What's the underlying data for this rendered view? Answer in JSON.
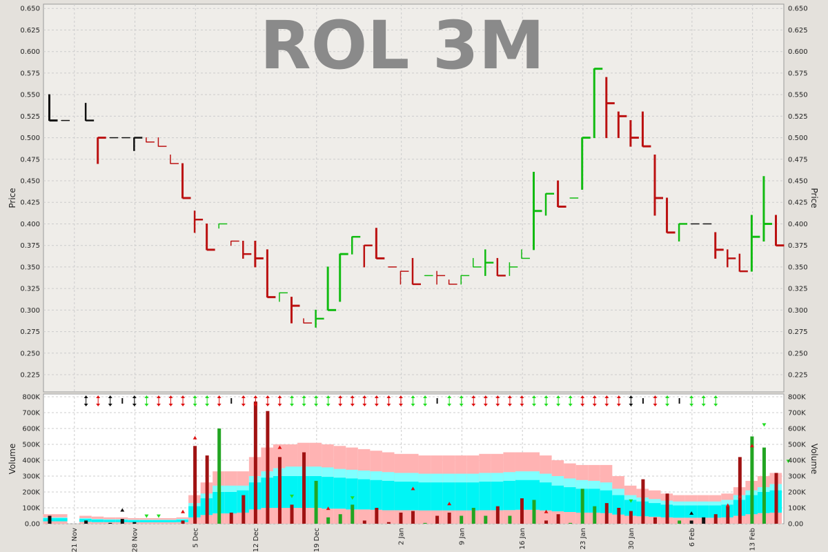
{
  "chart_data": [
    {
      "type": "ohlc",
      "title": "ROL 3M",
      "ylabel": "Price",
      "ylim": [
        0.205,
        0.655
      ],
      "yticks": [
        0.225,
        0.25,
        0.275,
        0.3,
        0.325,
        0.35,
        0.375,
        0.4,
        0.425,
        0.45,
        0.475,
        0.5,
        0.525,
        0.55,
        0.575,
        0.6,
        0.625,
        0.65
      ],
      "grid": true,
      "colors": {
        "up": "#11bb11",
        "down": "#bb1111",
        "neutral": "#111111",
        "background": "#efede9",
        "grid": "#cccccc",
        "title": "#8a8a8a"
      },
      "bars": [
        {
          "d": 0,
          "o": 0.55,
          "h": 0.55,
          "l": 0.52,
          "c": 0.52,
          "t": "n"
        },
        {
          "d": 1,
          "o": 0.52,
          "h": 0.52,
          "l": 0.52,
          "c": 0.52,
          "t": "n"
        },
        {
          "d": 3,
          "o": 0.54,
          "h": 0.54,
          "l": 0.52,
          "c": 0.52,
          "t": "n"
        },
        {
          "d": 4,
          "o": 0.5,
          "h": 0.5,
          "l": 0.47,
          "c": 0.5,
          "t": "d"
        },
        {
          "d": 5,
          "o": 0.5,
          "h": 0.5,
          "l": 0.5,
          "c": 0.5,
          "t": "n"
        },
        {
          "d": 6,
          "o": 0.5,
          "h": 0.5,
          "l": 0.5,
          "c": 0.5,
          "t": "n"
        },
        {
          "d": 7,
          "o": 0.5,
          "h": 0.5,
          "l": 0.485,
          "c": 0.5,
          "t": "n"
        },
        {
          "d": 8,
          "o": 0.5,
          "h": 0.5,
          "l": 0.495,
          "c": 0.495,
          "t": "d"
        },
        {
          "d": 9,
          "o": 0.5,
          "h": 0.5,
          "l": 0.49,
          "c": 0.49,
          "t": "d"
        },
        {
          "d": 10,
          "o": 0.48,
          "h": 0.48,
          "l": 0.47,
          "c": 0.47,
          "t": "d"
        },
        {
          "d": 11,
          "o": 0.47,
          "h": 0.47,
          "l": 0.43,
          "c": 0.43,
          "t": "d"
        },
        {
          "d": 12,
          "o": 0.415,
          "h": 0.415,
          "l": 0.39,
          "c": 0.405,
          "t": "d"
        },
        {
          "d": 13,
          "o": 0.4,
          "h": 0.4,
          "l": 0.37,
          "c": 0.37,
          "t": "d"
        },
        {
          "d": 14,
          "o": 0.395,
          "h": 0.4,
          "l": 0.395,
          "c": 0.4,
          "t": "u"
        },
        {
          "d": 15,
          "o": 0.38,
          "h": 0.38,
          "l": 0.375,
          "c": 0.38,
          "t": "d"
        },
        {
          "d": 16,
          "o": 0.38,
          "h": 0.38,
          "l": 0.36,
          "c": 0.365,
          "t": "d"
        },
        {
          "d": 17,
          "o": 0.38,
          "h": 0.38,
          "l": 0.35,
          "c": 0.36,
          "t": "d"
        },
        {
          "d": 18,
          "o": 0.37,
          "h": 0.37,
          "l": 0.315,
          "c": 0.315,
          "t": "d"
        },
        {
          "d": 19,
          "o": 0.32,
          "h": 0.32,
          "l": 0.31,
          "c": 0.32,
          "t": "u"
        },
        {
          "d": 20,
          "o": 0.315,
          "h": 0.315,
          "l": 0.285,
          "c": 0.305,
          "t": "d"
        },
        {
          "d": 21,
          "o": 0.29,
          "h": 0.29,
          "l": 0.285,
          "c": 0.285,
          "t": "d"
        },
        {
          "d": 22,
          "o": 0.29,
          "h": 0.3,
          "l": 0.28,
          "c": 0.29,
          "t": "u"
        },
        {
          "d": 23,
          "o": 0.3,
          "h": 0.35,
          "l": 0.3,
          "c": 0.3,
          "t": "u"
        },
        {
          "d": 24,
          "o": 0.31,
          "h": 0.365,
          "l": 0.31,
          "c": 0.365,
          "t": "u"
        },
        {
          "d": 25,
          "o": 0.365,
          "h": 0.385,
          "l": 0.365,
          "c": 0.385,
          "t": "u"
        },
        {
          "d": 26,
          "o": 0.375,
          "h": 0.375,
          "l": 0.35,
          "c": 0.375,
          "t": "d"
        },
        {
          "d": 27,
          "o": 0.395,
          "h": 0.395,
          "l": 0.36,
          "c": 0.36,
          "t": "d"
        },
        {
          "d": 28,
          "o": 0.35,
          "h": 0.35,
          "l": 0.35,
          "c": 0.35,
          "t": "d"
        },
        {
          "d": 29,
          "o": 0.345,
          "h": 0.345,
          "l": 0.33,
          "c": 0.345,
          "t": "d"
        },
        {
          "d": 30,
          "o": 0.36,
          "h": 0.36,
          "l": 0.33,
          "c": 0.33,
          "t": "d"
        },
        {
          "d": 31,
          "o": 0.34,
          "h": 0.34,
          "l": 0.34,
          "c": 0.34,
          "t": "u"
        },
        {
          "d": 32,
          "o": 0.345,
          "h": 0.345,
          "l": 0.33,
          "c": 0.34,
          "t": "d"
        },
        {
          "d": 33,
          "o": 0.335,
          "h": 0.335,
          "l": 0.33,
          "c": 0.33,
          "t": "d"
        },
        {
          "d": 34,
          "o": 0.33,
          "h": 0.34,
          "l": 0.33,
          "c": 0.34,
          "t": "u"
        },
        {
          "d": 35,
          "o": 0.35,
          "h": 0.36,
          "l": 0.35,
          "c": 0.35,
          "t": "u"
        },
        {
          "d": 36,
          "o": 0.35,
          "h": 0.37,
          "l": 0.34,
          "c": 0.355,
          "t": "u"
        },
        {
          "d": 37,
          "o": 0.36,
          "h": 0.36,
          "l": 0.34,
          "c": 0.34,
          "t": "d"
        },
        {
          "d": 38,
          "o": 0.35,
          "h": 0.355,
          "l": 0.34,
          "c": 0.35,
          "t": "u"
        },
        {
          "d": 39,
          "o": 0.36,
          "h": 0.37,
          "l": 0.36,
          "c": 0.36,
          "t": "u"
        },
        {
          "d": 40,
          "o": 0.37,
          "h": 0.46,
          "l": 0.37,
          "c": 0.415,
          "t": "u"
        },
        {
          "d": 41,
          "o": 0.41,
          "h": 0.435,
          "l": 0.41,
          "c": 0.435,
          "t": "u"
        },
        {
          "d": 42,
          "o": 0.42,
          "h": 0.45,
          "l": 0.42,
          "c": 0.42,
          "t": "d"
        },
        {
          "d": 43,
          "o": 0.43,
          "h": 0.43,
          "l": 0.43,
          "c": 0.43,
          "t": "u"
        },
        {
          "d": 44,
          "o": 0.44,
          "h": 0.5,
          "l": 0.44,
          "c": 0.5,
          "t": "u"
        },
        {
          "d": 45,
          "o": 0.5,
          "h": 0.58,
          "l": 0.5,
          "c": 0.58,
          "t": "u"
        },
        {
          "d": 46,
          "o": 0.57,
          "h": 0.57,
          "l": 0.5,
          "c": 0.54,
          "t": "d"
        },
        {
          "d": 47,
          "o": 0.53,
          "h": 0.53,
          "l": 0.5,
          "c": 0.525,
          "t": "d"
        },
        {
          "d": 48,
          "o": 0.52,
          "h": 0.52,
          "l": 0.49,
          "c": 0.5,
          "t": "d"
        },
        {
          "d": 49,
          "o": 0.53,
          "h": 0.53,
          "l": 0.49,
          "c": 0.49,
          "t": "d"
        },
        {
          "d": 50,
          "o": 0.48,
          "h": 0.48,
          "l": 0.41,
          "c": 0.43,
          "t": "d"
        },
        {
          "d": 51,
          "o": 0.43,
          "h": 0.43,
          "l": 0.39,
          "c": 0.39,
          "t": "d"
        },
        {
          "d": 52,
          "o": 0.38,
          "h": 0.4,
          "l": 0.38,
          "c": 0.4,
          "t": "u"
        },
        {
          "d": 53,
          "o": 0.4,
          "h": 0.4,
          "l": 0.4,
          "c": 0.4,
          "t": "n"
        },
        {
          "d": 54,
          "o": 0.4,
          "h": 0.4,
          "l": 0.4,
          "c": 0.4,
          "t": "n"
        },
        {
          "d": 55,
          "o": 0.39,
          "h": 0.39,
          "l": 0.36,
          "c": 0.37,
          "t": "d"
        },
        {
          "d": 56,
          "o": 0.36,
          "h": 0.37,
          "l": 0.35,
          "c": 0.36,
          "t": "d"
        },
        {
          "d": 57,
          "o": 0.365,
          "h": 0.365,
          "l": 0.345,
          "c": 0.345,
          "t": "d"
        },
        {
          "d": 58,
          "o": 0.345,
          "h": 0.41,
          "l": 0.345,
          "c": 0.385,
          "t": "u"
        },
        {
          "d": 59,
          "o": 0.38,
          "h": 0.455,
          "l": 0.38,
          "c": 0.4,
          "t": "u"
        },
        {
          "d": 60,
          "o": 0.41,
          "h": 0.41,
          "l": 0.375,
          "c": 0.375,
          "t": "d"
        }
      ]
    },
    {
      "type": "bar",
      "ylabel": "Volume",
      "ylim": [
        0,
        800000
      ],
      "yticks": [
        0,
        100000,
        200000,
        300000,
        400000,
        500000,
        600000,
        700000,
        800000
      ],
      "ytick_labels": [
        "0.00",
        "100K",
        "200K",
        "300K",
        "400K",
        "500K",
        "600K",
        "700K",
        "800K"
      ],
      "x_tick_labels": [
        {
          "d": 1.5,
          "label": "21 Nov"
        },
        {
          "d": 6.5,
          "label": "28 Nov"
        },
        {
          "d": 11.5,
          "label": "5 Dec"
        },
        {
          "d": 16.5,
          "label": "12 Dec"
        },
        {
          "d": 21.5,
          "label": "19 Dec"
        },
        {
          "d": 28.5,
          "label": "2 Jan"
        },
        {
          "d": 33.5,
          "label": "9 Jan"
        },
        {
          "d": 38.5,
          "label": "16 Jan"
        },
        {
          "d": 43.5,
          "label": "23 Jan"
        },
        {
          "d": 47.5,
          "label": "30 Jan"
        },
        {
          "d": 52.5,
          "label": "6 Feb"
        },
        {
          "d": 57.5,
          "label": "13 Feb"
        }
      ],
      "volume": [
        50000,
        0,
        0,
        20000,
        0,
        5000,
        30000,
        10000,
        0,
        0,
        0,
        20000,
        490000,
        430000,
        600000,
        70000,
        180000,
        770000,
        710000,
        420000,
        120000,
        450000,
        270000,
        40000,
        60000,
        120000,
        20000,
        100000,
        10000,
        70000,
        80000,
        5000,
        50000,
        70000,
        50000,
        100000,
        50000,
        110000,
        50000,
        160000,
        150000,
        20000,
        60000,
        5000,
        220000,
        110000,
        130000,
        100000,
        80000,
        280000,
        40000,
        190000,
        20000,
        20000,
        40000,
        60000,
        110000,
        420000,
        550000,
        480000,
        320000
      ],
      "volume_trend": [
        "n",
        "n",
        "n",
        "n",
        "d",
        "n",
        "n",
        "n",
        "d",
        "d",
        "d",
        "d",
        "d",
        "d",
        "u",
        "d",
        "d",
        "d",
        "d",
        "d",
        "d",
        "d",
        "u",
        "u",
        "u",
        "u",
        "d",
        "d",
        "d",
        "d",
        "d",
        "u",
        "d",
        "d",
        "u",
        "u",
        "u",
        "d",
        "u",
        "d",
        "u",
        "d",
        "d",
        "u",
        "u",
        "u",
        "d",
        "d",
        "d",
        "d",
        "d",
        "d",
        "u",
        "n",
        "n",
        "d",
        "d",
        "d",
        "u",
        "u",
        "d"
      ],
      "bands": {
        "outer_color": "#ffb3b3",
        "inner_color": "#00f5f5",
        "mid_color": "#80ffff",
        "upper": [
          60000,
          60000,
          0,
          50000,
          45000,
          40000,
          40000,
          35000,
          35000,
          35000,
          35000,
          40000,
          180000,
          260000,
          330000,
          330000,
          330000,
          420000,
          480000,
          500000,
          500000,
          510000,
          510000,
          500000,
          490000,
          480000,
          470000,
          460000,
          450000,
          440000,
          440000,
          430000,
          430000,
          430000,
          430000,
          430000,
          440000,
          440000,
          450000,
          450000,
          450000,
          430000,
          400000,
          380000,
          370000,
          370000,
          370000,
          300000,
          240000,
          220000,
          210000,
          190000,
          180000,
          180000,
          180000,
          180000,
          190000,
          230000,
          270000,
          300000,
          320000
        ],
        "mid": [
          40000,
          40000,
          0,
          35000,
          30000,
          28000,
          28000,
          25000,
          25000,
          25000,
          25000,
          30000,
          130000,
          190000,
          240000,
          240000,
          240000,
          300000,
          330000,
          350000,
          360000,
          360000,
          360000,
          355000,
          345000,
          340000,
          335000,
          330000,
          325000,
          320000,
          320000,
          315000,
          315000,
          315000,
          315000,
          315000,
          320000,
          320000,
          325000,
          330000,
          330000,
          315000,
          300000,
          285000,
          275000,
          270000,
          260000,
          220000,
          180000,
          165000,
          155000,
          145000,
          140000,
          140000,
          140000,
          140000,
          150000,
          180000,
          210000,
          230000,
          250000
        ],
        "inner": [
          35000,
          35000,
          0,
          30000,
          26000,
          24000,
          24000,
          22000,
          22000,
          22000,
          22000,
          25000,
          110000,
          160000,
          200000,
          200000,
          210000,
          260000,
          290000,
          300000,
          300000,
          300000,
          300000,
          295000,
          290000,
          285000,
          280000,
          275000,
          270000,
          265000,
          265000,
          260000,
          260000,
          260000,
          260000,
          260000,
          265000,
          265000,
          270000,
          275000,
          275000,
          260000,
          240000,
          230000,
          220000,
          220000,
          210000,
          180000,
          150000,
          140000,
          130000,
          120000,
          115000,
          115000,
          115000,
          115000,
          120000,
          150000,
          180000,
          200000,
          210000
        ],
        "lower": [
          15000,
          15000,
          0,
          12000,
          10000,
          10000,
          10000,
          9000,
          9000,
          9000,
          9000,
          10000,
          40000,
          55000,
          65000,
          65000,
          70000,
          90000,
          100000,
          100000,
          100000,
          100000,
          100000,
          95000,
          95000,
          90000,
          90000,
          88000,
          85000,
          85000,
          85000,
          84000,
          84000,
          84000,
          84000,
          84000,
          85000,
          85000,
          86000,
          88000,
          88000,
          84000,
          78000,
          74000,
          70000,
          70000,
          67000,
          58000,
          50000,
          47000,
          44000,
          40000,
          38000,
          38000,
          38000,
          38000,
          40000,
          50000,
          60000,
          67000,
          70000
        ]
      },
      "markers": [
        {
          "d": 6,
          "v": 85000,
          "t": "n"
        },
        {
          "d": 8,
          "v": 45000,
          "t": "u"
        },
        {
          "d": 9,
          "v": 45000,
          "t": "u"
        },
        {
          "d": 11,
          "v": 75000,
          "t": "d"
        },
        {
          "d": 12,
          "v": 540000,
          "t": "d"
        },
        {
          "d": 19,
          "v": 480000,
          "t": "d"
        },
        {
          "d": 20,
          "v": 170000,
          "t": "u"
        },
        {
          "d": 23,
          "v": 95000,
          "t": "d"
        },
        {
          "d": 25,
          "v": 160000,
          "t": "u"
        },
        {
          "d": 30,
          "v": 220000,
          "t": "d"
        },
        {
          "d": 33,
          "v": 125000,
          "t": "d"
        },
        {
          "d": 41,
          "v": 75000,
          "t": "d"
        },
        {
          "d": 48,
          "v": 140000,
          "t": "u"
        },
        {
          "d": 53,
          "v": 65000,
          "t": "n"
        },
        {
          "d": 56,
          "v": 115000,
          "t": "d"
        },
        {
          "d": 57,
          "v": 170000,
          "t": "d"
        },
        {
          "d": 58,
          "v": 490000,
          "t": "d"
        },
        {
          "d": 59,
          "v": 620000,
          "t": "u"
        },
        {
          "d": 61,
          "v": 390000,
          "t": "u"
        }
      ],
      "top_arrows": [
        "n2",
        "d",
        "n2",
        "n",
        "n2",
        "u",
        "d",
        "d",
        "d",
        "u",
        "u",
        "d",
        "n",
        "d",
        "d",
        "d",
        "d",
        "u",
        "u",
        "u",
        "u",
        "d",
        "d",
        "d",
        "d",
        "d",
        "d",
        "u",
        "u",
        "n",
        "u",
        "u",
        "d",
        "d",
        "d",
        "d",
        "d",
        "u",
        "u",
        "u",
        "u",
        "d",
        "d",
        "d",
        "d",
        "n2",
        "n",
        "d",
        "u",
        "n",
        "u",
        "u",
        "u"
      ]
    }
  ]
}
